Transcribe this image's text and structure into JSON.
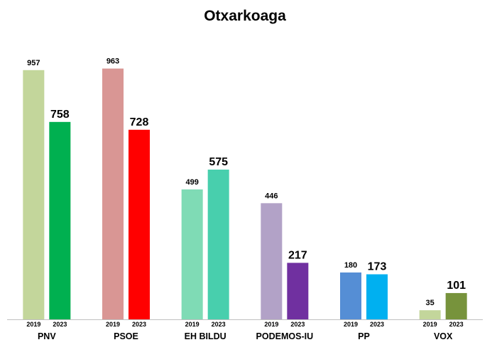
{
  "chart_data": {
    "type": "bar",
    "title": "Otxarkoaga",
    "xlabel": "",
    "ylabel": "",
    "ylim": [
      0,
      1060
    ],
    "grid": false,
    "legend": "none",
    "categories": [
      "PNV",
      "PSOE",
      "EH BILDU",
      "PODEMOS-IU",
      "PP",
      "VOX"
    ],
    "series": [
      {
        "name": "2019",
        "values": [
          957,
          963,
          499,
          446,
          180,
          35
        ]
      },
      {
        "name": "2023",
        "values": [
          758,
          728,
          575,
          217,
          173,
          101
        ]
      }
    ],
    "colors": {
      "2019": [
        "#c3d69b",
        "#d99694",
        "#7fdbb5",
        "#b2a2c7",
        "#558ed5",
        "#c3d69b"
      ],
      "2023": [
        "#00b050",
        "#ff0000",
        "#48cfad",
        "#7030a0",
        "#00b0f0",
        "#77933c"
      ]
    }
  }
}
